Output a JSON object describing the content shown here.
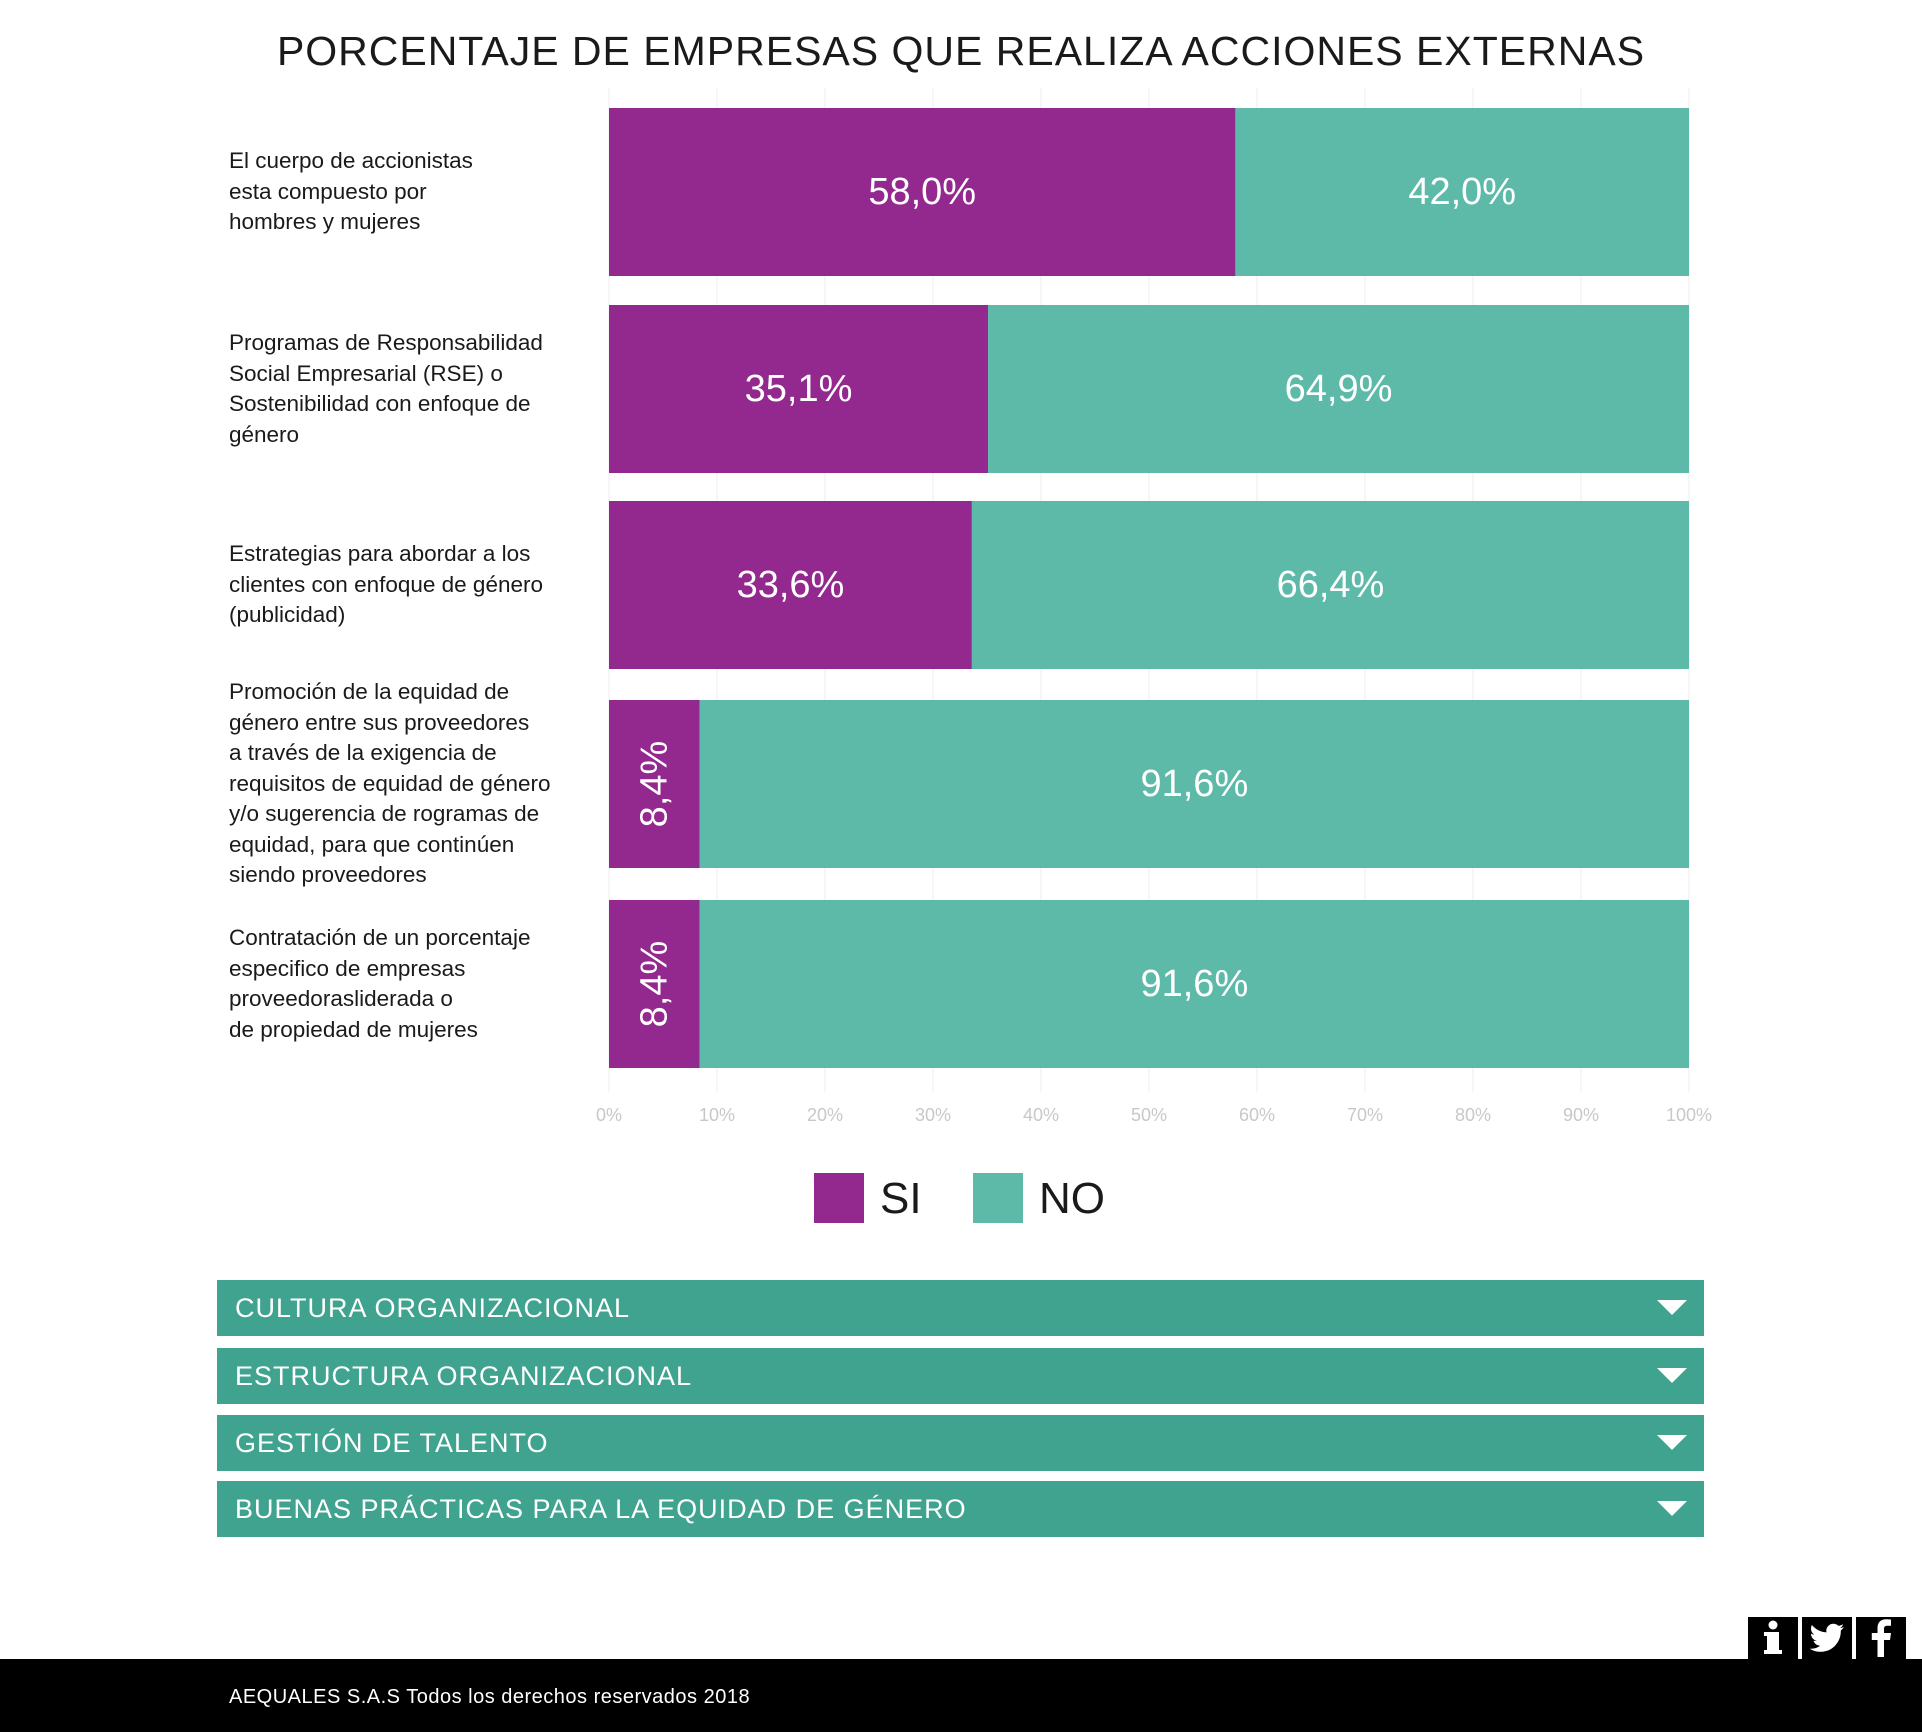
{
  "chart_data": {
    "type": "bar",
    "orientation": "horizontal",
    "stacked": true,
    "percent": true,
    "title": "PORCENTAJE DE EMPRESAS QUE REALIZA ACCIONES EXTERNAS",
    "categories": [
      "El cuerpo de accionistas\nesta compuesto por\nhombres y mujeres",
      "Programas de Responsabilidad\nSocial Empresarial (RSE) o\nSostenibilidad con enfoque de\ngénero",
      "Estrategias para abordar a los\nclientes con enfoque de género\n(publicidad)",
      "Promoción de la equidad de\ngénero entre sus proveedores\na través de la exigencia de\nrequisitos de equidad de género\ny/o sugerencia de rogramas de\nequidad, para que continúen\nsiendo proveedores",
      "Contratación de un porcentaje\nespecifico de empresas\nproveedorasliderada o\nde propiedad de mujeres"
    ],
    "series": [
      {
        "name": "SI",
        "color": "#93288f",
        "values": [
          58.0,
          35.1,
          33.6,
          8.4,
          8.4
        ],
        "labels": [
          "58,0%",
          "35,1%",
          "33,6%",
          "8,4%",
          "8,4%"
        ]
      },
      {
        "name": "NO",
        "color": "#5dbaa9",
        "values": [
          42.0,
          64.9,
          66.4,
          91.6,
          91.6
        ],
        "labels": [
          "42,0%",
          "64,9%",
          "66,4%",
          "91,6%",
          "91,6%"
        ]
      }
    ],
    "xlim": [
      0,
      100
    ],
    "xticks": [
      "0%",
      "10%",
      "20%",
      "30%",
      "40%",
      "50%",
      "60%",
      "70%",
      "80%",
      "90%",
      "100%"
    ],
    "grid": true,
    "legend_position": "bottom"
  },
  "accordion": [
    {
      "label": "CULTURA ORGANIZACIONAL"
    },
    {
      "label": "ESTRUCTURA ORGANIZACIONAL"
    },
    {
      "label": "GESTIÓN DE TALENTO"
    },
    {
      "label": "BUENAS PRÁCTICAS PARA LA EQUIDAD DE GÉNERO"
    }
  ],
  "social": [
    {
      "icon": "info-icon",
      "glyph": "i"
    },
    {
      "icon": "twitter-icon",
      "glyph": "t"
    },
    {
      "icon": "facebook-icon",
      "glyph": "f"
    }
  ],
  "footer": {
    "text": "AEQUALES  S.A.S Todos los derechos reservados 2018"
  },
  "colors": {
    "accordion": "#40a38f",
    "si": "#93288f",
    "no": "#5dbaa9",
    "footer": "#000000"
  }
}
